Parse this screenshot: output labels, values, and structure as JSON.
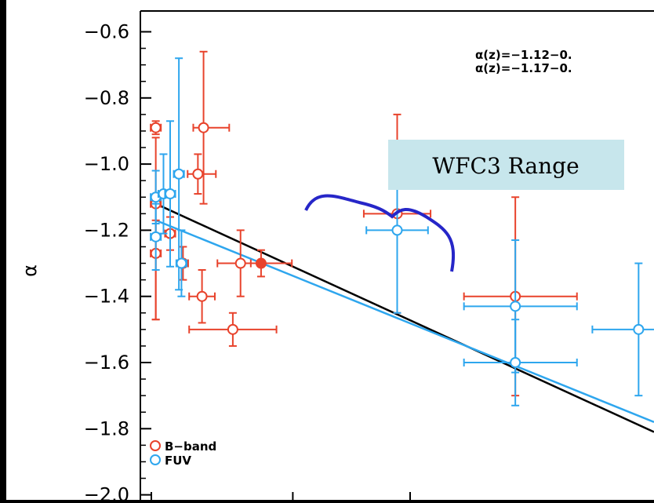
{
  "chart_data": {
    "type": "scatter",
    "ylabel": "α",
    "xlabel": "",
    "xlim": [
      0,
      1
    ],
    "ylim": [
      -2.08,
      -0.58
    ],
    "yticks": [
      -0.6,
      -0.8,
      -1.0,
      -1.2,
      -1.4,
      -1.6,
      -1.8,
      -2.0
    ],
    "ytick_labels": [
      "−0.6",
      "−0.8",
      "−1.0",
      "−1.2",
      "−1.4",
      "−1.6",
      "−1.8",
      "−2.0"
    ],
    "legend": {
      "position": "bottom-left",
      "entries": [
        {
          "label": "B−band",
          "color": "#e8432c"
        },
        {
          "label": "FUV",
          "color": "#2ea6ee"
        }
      ]
    },
    "equations": [
      "α(z)=−1.12−0.",
      "α(z)=−1.17−0."
    ],
    "annotation": {
      "text": "WFC3 Range",
      "box_color": "#c7e6ec"
    },
    "brace_color": "#2626c8",
    "series": [
      {
        "name": "B−band",
        "color": "#e8432c",
        "points": [
          {
            "x": 0.03,
            "y": -0.89,
            "ex": [
              0.01,
              0.01
            ],
            "ey": [
              0.02,
              0.02
            ]
          },
          {
            "x": 0.03,
            "y": -1.12,
            "ex": [
              0.01,
              0.01
            ],
            "ey": [
              0.2,
              0.35
            ]
          },
          {
            "x": 0.03,
            "y": -1.27,
            "ex": [
              0.01,
              0.01
            ],
            "ey": [
              0.1,
              0.2
            ]
          },
          {
            "x": 0.058,
            "y": -1.21,
            "ex": [
              0.01,
              0.01
            ],
            "ey": [
              0.05,
              0.05
            ]
          },
          {
            "x": 0.083,
            "y": -1.3,
            "ex": [
              0.01,
              0.01
            ],
            "ey": [
              0.05,
              0.05
            ]
          },
          {
            "x": 0.112,
            "y": -1.03,
            "ex": [
              0.02,
              0.035
            ],
            "ey": [
              0.06,
              0.06
            ]
          },
          {
            "x": 0.123,
            "y": -0.89,
            "ex": [
              0.02,
              0.05
            ],
            "ey": [
              0.23,
              0.23
            ]
          },
          {
            "x": 0.12,
            "y": -1.4,
            "ex": [
              0.025,
              0.025
            ],
            "ey": [
              0.08,
              0.08
            ]
          },
          {
            "x": 0.195,
            "y": -1.3,
            "ex": [
              0.045,
              0.045
            ],
            "ey": [
              0.1,
              0.1
            ]
          },
          {
            "x": 0.235,
            "y": -1.3,
            "ex": [
              0.02,
              0.06
            ],
            "ey": [
              0.04,
              0.04
            ],
            "filled": true
          },
          {
            "x": 0.18,
            "y": -1.5,
            "ex": [
              0.085,
              0.085
            ],
            "ey": [
              0.05,
              0.05
            ]
          },
          {
            "x": 0.5,
            "y": -1.15,
            "ex": [
              0.065,
              0.065
            ],
            "ey": [
              0.3,
              0.3
            ]
          },
          {
            "x": 0.73,
            "y": -1.4,
            "ex": [
              0.1,
              0.12
            ],
            "ey": [
              0.3,
              0.3
            ]
          }
        ]
      },
      {
        "name": "FUV",
        "color": "#2ea6ee",
        "points": [
          {
            "x": 0.03,
            "y": -1.1,
            "ex": [
              0.01,
              0.01
            ],
            "ey": [
              0.08,
              0.08
            ]
          },
          {
            "x": 0.03,
            "y": -1.22,
            "ex": [
              0.01,
              0.01
            ],
            "ey": [
              0.1,
              0.1
            ]
          },
          {
            "x": 0.045,
            "y": -1.09,
            "ex": [
              0.01,
              0.01
            ],
            "ey": [
              0.12,
              0.12
            ]
          },
          {
            "x": 0.058,
            "y": -1.09,
            "ex": [
              0.01,
              0.01
            ],
            "ey": [
              0.22,
              0.22
            ]
          },
          {
            "x": 0.075,
            "y": -1.03,
            "ex": [
              0.01,
              0.01
            ],
            "ey": [
              0.35,
              0.35
            ]
          },
          {
            "x": 0.08,
            "y": -1.3,
            "ex": [
              0.01,
              0.01
            ],
            "ey": [
              0.1,
              0.1
            ]
          },
          {
            "x": 0.5,
            "y": -1.2,
            "ex": [
              0.06,
              0.06
            ],
            "ey": [
              0.25,
              0.25
            ]
          },
          {
            "x": 0.73,
            "y": -1.43,
            "ex": [
              0.1,
              0.12
            ],
            "ey": [
              0.2,
              0.2
            ]
          },
          {
            "x": 0.73,
            "y": -1.6,
            "ex": [
              0.1,
              0.12
            ],
            "ey": [
              0.13,
              0.13
            ]
          },
          {
            "x": 0.97,
            "y": -1.5,
            "ex": [
              0.09,
              0.09
            ],
            "ey": [
              0.2,
              0.2
            ]
          }
        ]
      }
    ],
    "fits": [
      {
        "name": "black-fit",
        "color": "#000000",
        "x": [
          0.03,
          1.0
        ],
        "y": [
          -1.12,
          -1.81
        ]
      },
      {
        "name": "blue-fit",
        "color": "#2ea6ee",
        "x": [
          0.03,
          1.0
        ],
        "y": [
          -1.17,
          -1.78
        ]
      }
    ]
  }
}
